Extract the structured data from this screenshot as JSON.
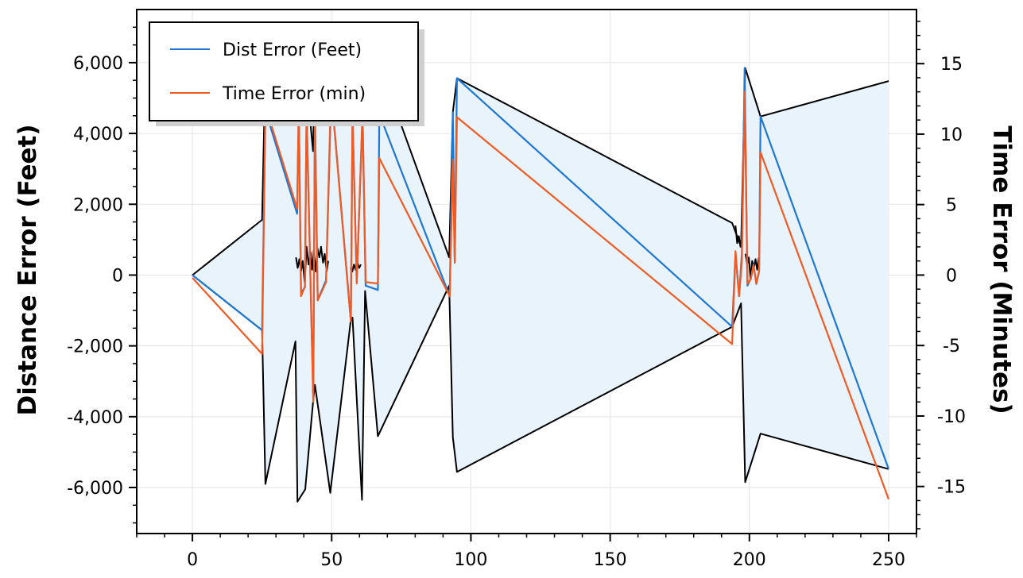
{
  "chart_data": {
    "type": "line",
    "title": "",
    "xlabel": "",
    "ylabel": "Distance Error (Feet)",
    "y2label": "Time Error (Minutes)",
    "xlim": [
      -20,
      260
    ],
    "ylim": [
      -7300,
      7500
    ],
    "y2lim": [
      -18.34,
      18.84
    ],
    "x_ticks": [
      0,
      50,
      100,
      150,
      200,
      250
    ],
    "x_tick_labels": [
      "0",
      "50",
      "100",
      "150",
      "200",
      "250"
    ],
    "y_ticks": [
      -6000,
      -4000,
      -2000,
      0,
      2000,
      4000,
      6000
    ],
    "y_tick_labels": [
      "-6,000",
      "-4,000",
      "-2,000",
      "0",
      "2,000",
      "4,000",
      "6,000"
    ],
    "y2_ticks": [
      -15,
      -10,
      -5,
      0,
      5,
      10,
      15
    ],
    "y2_tick_labels": [
      "-15",
      "-10",
      "-5",
      "0",
      "5",
      "10",
      "15"
    ],
    "grid": true,
    "legend_position": "top-left",
    "colors": {
      "dist": "#1f77d4",
      "time": "#f05a23",
      "envelope": "#000000",
      "envelope_fill": "#e8f3fc"
    },
    "envelope": {
      "upper": [
        [
          0,
          0
        ],
        [
          25,
          1560
        ],
        [
          26.2,
          5900
        ],
        [
          37.3,
          5900
        ],
        [
          37.8,
          5900
        ],
        [
          40.5,
          5900
        ],
        [
          43.3,
          3500
        ],
        [
          44,
          5900
        ],
        [
          49.3,
          5900
        ],
        [
          50.5,
          5900
        ],
        [
          56.8,
          5900
        ],
        [
          57.5,
          5900
        ],
        [
          61.2,
          5900
        ],
        [
          62,
          5900
        ],
        [
          66.6,
          5900
        ],
        [
          67.3,
          5900
        ],
        [
          92.2,
          500
        ],
        [
          93.5,
          4600
        ],
        [
          95,
          5560
        ],
        [
          193.8,
          1470
        ],
        [
          197,
          800
        ],
        [
          198.5,
          5850
        ],
        [
          204,
          4480
        ],
        [
          250,
          5480
        ]
      ],
      "lower": [
        [
          0,
          0
        ],
        [
          25,
          -1560
        ],
        [
          26.2,
          -5900
        ],
        [
          37,
          -1870
        ],
        [
          37.7,
          -6400
        ],
        [
          40.5,
          -6050
        ],
        [
          43.3,
          -3600
        ],
        [
          44,
          -3100
        ],
        [
          49.5,
          -6150
        ],
        [
          56.8,
          -1320
        ],
        [
          57.5,
          -1200
        ],
        [
          60.9,
          -6350
        ],
        [
          62,
          -450
        ],
        [
          66.6,
          -4550
        ],
        [
          92.2,
          -300
        ],
        [
          93.5,
          -4580
        ],
        [
          95,
          -5560
        ],
        [
          193.8,
          -1460
        ],
        [
          197,
          -800
        ],
        [
          198.5,
          -5850
        ],
        [
          204,
          -4480
        ],
        [
          250,
          -5480
        ]
      ],
      "noise_clusters": [
        [
          [
            37.2,
            500
          ],
          [
            37.8,
            200
          ],
          [
            38.4,
            450
          ],
          [
            39,
            100
          ],
          [
            39.6,
            400
          ],
          [
            40.3,
            -200
          ],
          [
            41,
            800
          ],
          [
            41.7,
            300
          ],
          [
            42.4,
            650
          ],
          [
            43,
            150
          ],
          [
            43.6,
            700
          ],
          [
            44.3,
            100
          ],
          [
            44.9,
            750
          ],
          [
            45.6,
            500
          ],
          [
            46.2,
            800
          ],
          [
            46.9,
            350
          ],
          [
            47.5,
            600
          ],
          [
            48.2,
            100
          ],
          [
            48.8,
            400
          ]
        ],
        [
          [
            56.8,
            200
          ],
          [
            57.4,
            100
          ],
          [
            58,
            300
          ],
          [
            58.6,
            150
          ],
          [
            59.3,
            350
          ],
          [
            59.9,
            200
          ],
          [
            60.5,
            300
          ]
        ],
        [
          [
            195,
            1400
          ],
          [
            195.6,
            900
          ],
          [
            196.2,
            1100
          ],
          [
            196.8,
            800
          ],
          [
            197.4,
            1050
          ]
        ],
        [
          [
            198.6,
            600
          ],
          [
            199.2,
            300
          ],
          [
            199.8,
            500
          ],
          [
            200.4,
            -100
          ],
          [
            201,
            400
          ],
          [
            201.6,
            200
          ],
          [
            202.2,
            450
          ],
          [
            202.8,
            150
          ],
          [
            203.4,
            500
          ]
        ]
      ]
    },
    "series": [
      {
        "name": "Dist Error (Feet)",
        "axis": "left",
        "points": [
          [
            0,
            0
          ],
          [
            25,
            -1560
          ],
          [
            26.2,
            4650
          ],
          [
            37.6,
            1730
          ],
          [
            38.2,
            4800
          ],
          [
            39,
            -500
          ],
          [
            40.4,
            -350
          ],
          [
            41,
            4600
          ],
          [
            43.4,
            -3480
          ],
          [
            44,
            4600
          ],
          [
            45,
            -700
          ],
          [
            48,
            -150
          ],
          [
            49.6,
            4400
          ],
          [
            50.5,
            4600
          ],
          [
            56.9,
            -1300
          ],
          [
            57.5,
            4500
          ],
          [
            59,
            -200
          ],
          [
            61.1,
            4550
          ],
          [
            62.2,
            -300
          ],
          [
            66.6,
            -420
          ],
          [
            67.1,
            4550
          ],
          [
            92.4,
            -600
          ],
          [
            93.5,
            4600
          ],
          [
            94.2,
            350
          ],
          [
            95,
            5560
          ],
          [
            193.8,
            -1460
          ],
          [
            195,
            600
          ],
          [
            196.3,
            -600
          ],
          [
            197.3,
            600
          ],
          [
            198.3,
            5850
          ],
          [
            199.3,
            -300
          ],
          [
            200.5,
            -100
          ],
          [
            201.5,
            300
          ],
          [
            202.5,
            -250
          ],
          [
            203.5,
            100
          ],
          [
            204,
            4480
          ],
          [
            250,
            -5480
          ]
        ]
      },
      {
        "name": "Time Error (min)",
        "axis": "right",
        "points": [
          [
            0,
            -0.2
          ],
          [
            25,
            -5.6
          ],
          [
            26.2,
            12
          ],
          [
            37.6,
            4.7
          ],
          [
            38.2,
            12
          ],
          [
            39,
            -1.5
          ],
          [
            40.4,
            -0.8
          ],
          [
            41,
            11.8
          ],
          [
            43.4,
            -9
          ],
          [
            44,
            11.5
          ],
          [
            45,
            -1.8
          ],
          [
            48,
            -0.5
          ],
          [
            49.6,
            11.7
          ],
          [
            50.5,
            11.5
          ],
          [
            56.9,
            -3.3
          ],
          [
            57.5,
            11.4
          ],
          [
            59,
            -0.6
          ],
          [
            61.1,
            11.5
          ],
          [
            62.2,
            -0.5
          ],
          [
            66.6,
            -0.6
          ],
          [
            67.1,
            8.3
          ],
          [
            92.4,
            -1.5
          ],
          [
            93.5,
            8.2
          ],
          [
            94.2,
            0.9
          ],
          [
            95,
            11.2
          ],
          [
            193.8,
            -4.9
          ],
          [
            195,
            1.7
          ],
          [
            196.3,
            -1.5
          ],
          [
            197.3,
            0.9
          ],
          [
            198.3,
            13
          ],
          [
            199.3,
            -0.6
          ],
          [
            200.5,
            -0.3
          ],
          [
            201.5,
            0.7
          ],
          [
            202.5,
            -0.6
          ],
          [
            203.5,
            0.3
          ],
          [
            204,
            8.7
          ],
          [
            250,
            -15.9
          ]
        ]
      }
    ]
  }
}
